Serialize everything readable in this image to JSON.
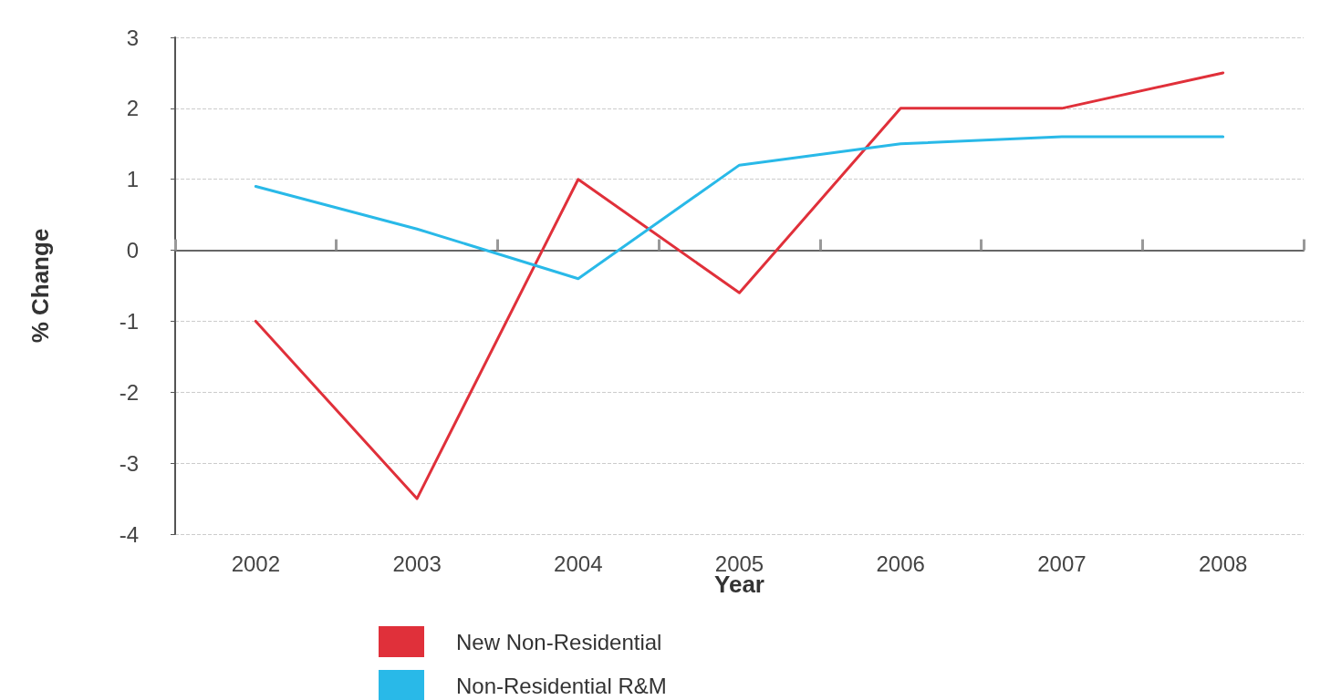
{
  "chart_data": {
    "type": "line",
    "xlabel": "Year",
    "ylabel": "% Change",
    "categories": [
      "2002",
      "2003",
      "2004",
      "2005",
      "2006",
      "2007",
      "2008"
    ],
    "series": [
      {
        "name": "New Non-Residential",
        "color": "#e0303a",
        "values": [
          -1.0,
          -3.5,
          1.0,
          -0.6,
          2.0,
          2.0,
          2.5
        ]
      },
      {
        "name": "Non-Residential R&M",
        "color": "#29b9e8",
        "values": [
          0.9,
          0.3,
          -0.4,
          1.2,
          1.5,
          1.6,
          1.6
        ]
      }
    ],
    "ylim": [
      -4,
      3
    ],
    "yticks": [
      -4,
      -3,
      -2,
      -1,
      0,
      1,
      2,
      3
    ],
    "grid": "y",
    "legend": "bottom",
    "marker": "none",
    "line_style": "solid"
  }
}
